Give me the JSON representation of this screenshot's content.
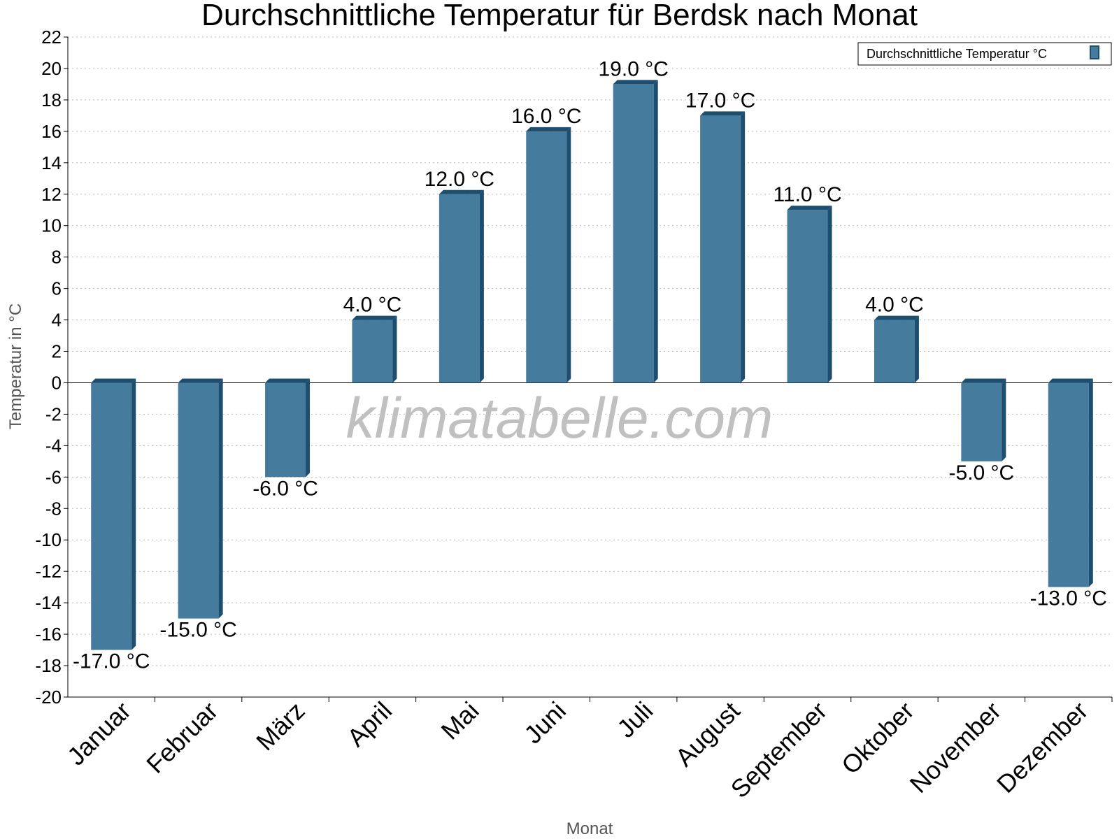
{
  "chart_data": {
    "type": "bar",
    "title": "Durchschnittliche Temperatur für Berdsk nach Monat",
    "xlabel": "Monat",
    "ylabel": "Temperatur in °C",
    "ylim": [
      -20,
      22
    ],
    "ytick_step": 2,
    "grid": true,
    "legend_position": "top-right",
    "categories": [
      "Januar",
      "Februar",
      "März",
      "April",
      "Mai",
      "Juni",
      "Juli",
      "August",
      "September",
      "Oktober",
      "November",
      "Dezember"
    ],
    "series": [
      {
        "name": "Durchschnittliche Temperatur °C",
        "values": [
          -17.0,
          -15.0,
          -6.0,
          4.0,
          12.0,
          16.0,
          19.0,
          17.0,
          11.0,
          4.0,
          -5.0,
          -13.0
        ],
        "labels": [
          "-17.0 °C",
          "-15.0 °C",
          "-6.0 °C",
          "4.0 °C",
          "12.0 °C",
          "16.0 °C",
          "19.0 °C",
          "17.0 °C",
          "11.0 °C",
          "4.0 °C",
          "-5.0 °C",
          "-13.0 °C"
        ],
        "color": "#457b9d",
        "side_color": "#1d4e6f"
      }
    ]
  },
  "watermark": "klimatabelle.com"
}
